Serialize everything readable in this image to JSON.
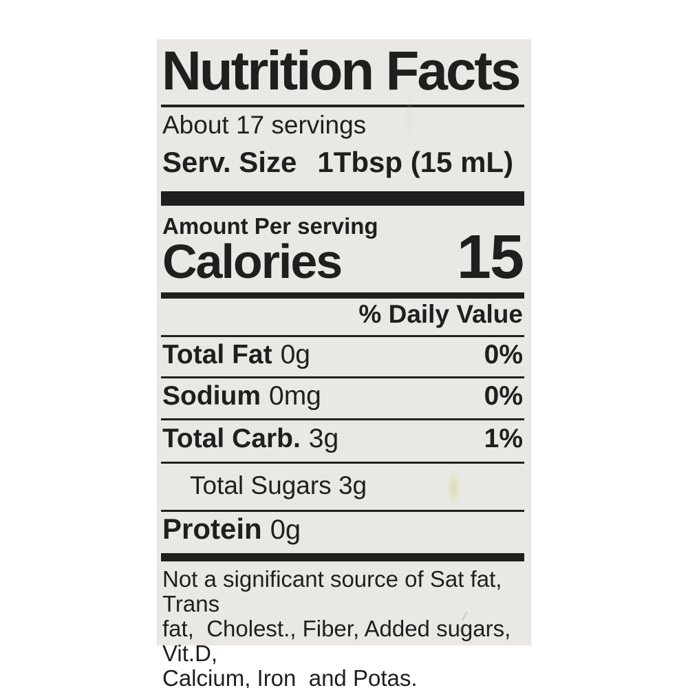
{
  "label": {
    "title": "Nutrition Facts",
    "servings_text": "About 17 servings",
    "serving_size": {
      "label": "Serv. Size",
      "value": "1Tbsp (15 mL)"
    },
    "amount_per_text": "Amount Per serving",
    "calories": {
      "label": "Calories",
      "value": "15"
    },
    "daily_value_header": "% Daily Value",
    "nutrient_rows": [
      {
        "name": "Total Fat",
        "amount": "0g",
        "daily_value": "0%"
      },
      {
        "name": "Sodium",
        "amount": "0mg",
        "daily_value": "0%"
      },
      {
        "name": "Total Carb.",
        "amount": "3g",
        "daily_value": "1%"
      }
    ],
    "sub_rows": [
      {
        "name": "Total Sugars",
        "amount": "3g",
        "text": "Total Sugars 3g"
      }
    ],
    "protein_row": {
      "name": "Protein",
      "amount": "0g"
    },
    "footnote_lines": [
      "Not a significant source of Sat fat, Trans",
      "fat,  Cholest., Fiber, Added sugars, Vit.D,",
      "Calcium, Iron  and Potas."
    ],
    "colors": {
      "ink": "#211f1d",
      "label_bg": "#e9e8e4",
      "page_bg": "#ffffff"
    }
  }
}
